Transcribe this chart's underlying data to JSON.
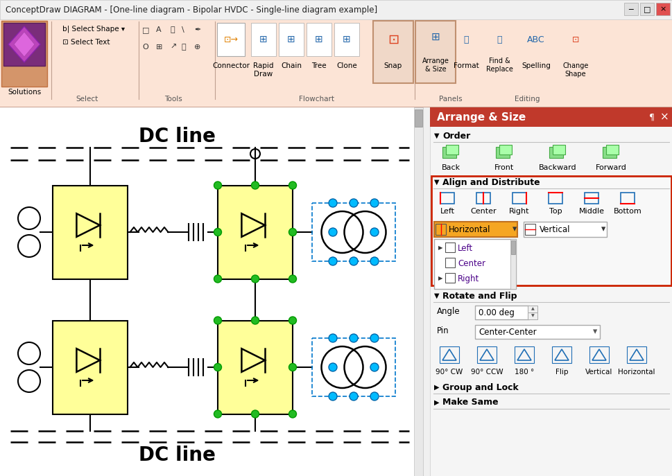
{
  "title_bar_text": "ConceptDraw DIAGRAM - [One-line diagram - Bipolar HVDC - Single-line diagram example]",
  "window_bg": "#f0f0f0",
  "ribbon_bg": "#fce4d6",
  "panel_header_bg": "#c0392b",
  "panel_header_text": "Arrange & Size",
  "yellow_fill": "#ffff99",
  "green_dot": "#22bb22",
  "cyan_dot": "#00bbff",
  "red_border": "#cc2200",
  "blue_icon": "#1f6eb5",
  "orange_bar_bg": "#f5a623",
  "section_order": "Order",
  "section_align": "Align and Distribute",
  "section_rotate": "Rotate and Flip",
  "section_group": "Group and Lock",
  "section_make": "Make Same",
  "angle_label": "Angle",
  "angle_value": "0.00 deg",
  "pin_label": "Pin",
  "pin_value": "Center-Center",
  "order_buttons": [
    "Back",
    "Front",
    "Backward",
    "Forward"
  ],
  "align_buttons": [
    "Left",
    "Center",
    "Right",
    "Top",
    "Middle",
    "Bottom"
  ],
  "rotate_buttons": [
    "90° CW",
    "90° CCW",
    "180 °",
    "Flip",
    "Vertical",
    "Horizontal"
  ],
  "dropdown_items": [
    "Left",
    "Center",
    "Right"
  ],
  "dc_line_text": "DC line"
}
